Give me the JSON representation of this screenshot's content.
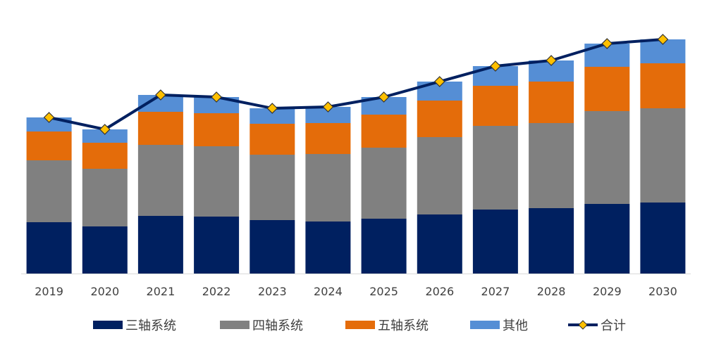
{
  "chart_data": {
    "type": "bar",
    "stacked": true,
    "categories": [
      "2019",
      "2020",
      "2021",
      "2022",
      "2023",
      "2024",
      "2025",
      "2026",
      "2027",
      "2028",
      "2029",
      "2030"
    ],
    "series": [
      {
        "name": "三轴系统",
        "type": "bar",
        "color": "#002060",
        "values": [
          73,
          67,
          82,
          81,
          76,
          74,
          78,
          84,
          91,
          93,
          99,
          101
        ]
      },
      {
        "name": "四轴系统",
        "type": "bar",
        "color": "#808080",
        "values": [
          88,
          82,
          101,
          100,
          93,
          96,
          101,
          110,
          119,
          121,
          132,
          134
        ]
      },
      {
        "name": "五轴系统",
        "type": "bar",
        "color": "#E46C0A",
        "values": [
          41,
          37,
          47,
          47,
          44,
          44,
          47,
          52,
          57,
          59,
          63,
          64
        ]
      },
      {
        "name": "其他",
        "type": "bar",
        "color": "#558ED5",
        "values": [
          20,
          19,
          24,
          23,
          22,
          23,
          25,
          27,
          28,
          30,
          33,
          34
        ]
      },
      {
        "name": "合计",
        "type": "line",
        "color": "#002060",
        "marker_color": "#FFC000",
        "values": [
          222,
          205,
          254,
          251,
          235,
          237,
          251,
          273,
          295,
          303,
          327,
          333
        ]
      }
    ],
    "ylim": [
      0,
      345
    ],
    "grid": false,
    "legend": "bottom",
    "title": "",
    "xlabel": "",
    "ylabel": ""
  }
}
